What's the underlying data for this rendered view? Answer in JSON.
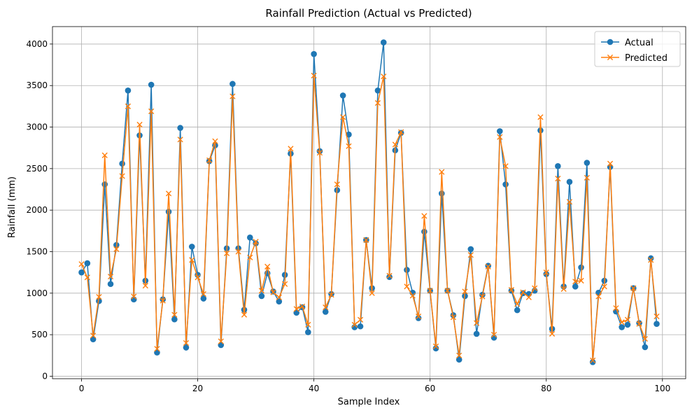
{
  "chart_data": {
    "type": "line",
    "title": "Rainfall Prediction (Actual vs Predicted)",
    "xlabel": "Sample Index",
    "ylabel": "Rainfall (mm)",
    "xlim": [
      -5,
      104
    ],
    "ylim": [
      -30,
      4210
    ],
    "xticks": [
      0,
      20,
      40,
      60,
      80,
      100
    ],
    "yticks": [
      0,
      500,
      1000,
      1500,
      2000,
      2500,
      3000,
      3500,
      4000
    ],
    "grid": true,
    "legend_position": "top-right",
    "x": [
      0,
      1,
      2,
      3,
      4,
      5,
      6,
      7,
      8,
      9,
      10,
      11,
      12,
      13,
      14,
      15,
      16,
      17,
      18,
      19,
      20,
      21,
      22,
      23,
      24,
      25,
      26,
      27,
      28,
      29,
      30,
      31,
      32,
      33,
      34,
      35,
      36,
      37,
      38,
      39,
      40,
      41,
      42,
      43,
      44,
      45,
      46,
      47,
      48,
      49,
      50,
      51,
      52,
      53,
      54,
      55,
      56,
      57,
      58,
      59,
      60,
      61,
      62,
      63,
      64,
      65,
      66,
      67,
      68,
      69,
      70,
      71,
      72,
      73,
      74,
      75,
      76,
      77,
      78,
      79,
      80,
      81,
      82,
      83,
      84,
      85,
      86,
      87,
      88,
      89,
      90,
      91,
      92,
      93,
      94,
      95,
      96,
      97,
      98,
      99
    ],
    "series": [
      {
        "name": "Actual",
        "color": "#1f77b4",
        "marker": "circle",
        "values": [
          1250,
          1360,
          445,
          905,
          2310,
          1110,
          1580,
          2560,
          3440,
          925,
          2900,
          1150,
          3510,
          285,
          925,
          1980,
          685,
          2990,
          345,
          1560,
          1220,
          935,
          2590,
          2780,
          375,
          1540,
          3520,
          1540,
          800,
          1670,
          1600,
          965,
          1240,
          1020,
          900,
          1220,
          2680,
          765,
          830,
          530,
          3880,
          2710,
          775,
          990,
          2240,
          3380,
          2910,
          590,
          600,
          1640,
          1060,
          3440,
          4020,
          1195,
          2720,
          2930,
          1280,
          1005,
          700,
          1740,
          1030,
          335,
          2200,
          1030,
          735,
          200,
          965,
          1530,
          510,
          980,
          1330,
          465,
          2950,
          2310,
          1030,
          795,
          1000,
          990,
          1030,
          2960,
          1230,
          570,
          2530,
          1080,
          2340,
          1080,
          1310,
          2570,
          170,
          1005,
          1150,
          2520,
          780,
          590,
          620,
          1060,
          640,
          350,
          1420,
          630
        ]
      },
      {
        "name": "Predicted",
        "color": "#ff7f0e",
        "marker": "x",
        "values": [
          1350,
          1190,
          490,
          955,
          2660,
          1200,
          1530,
          2410,
          3250,
          960,
          3030,
          1090,
          3190,
          330,
          910,
          2200,
          740,
          2850,
          400,
          1400,
          1190,
          990,
          2600,
          2830,
          420,
          1480,
          3370,
          1500,
          740,
          1430,
          1620,
          1030,
          1320,
          1010,
          950,
          1110,
          2740,
          810,
          840,
          620,
          3620,
          2690,
          830,
          980,
          2310,
          3120,
          2770,
          620,
          680,
          1640,
          1000,
          3290,
          3610,
          1210,
          2790,
          2940,
          1080,
          970,
          720,
          1930,
          1030,
          360,
          2460,
          1030,
          710,
          250,
          1020,
          1460,
          640,
          960,
          1320,
          500,
          2880,
          2530,
          1040,
          870,
          1010,
          950,
          1060,
          3120,
          1250,
          510,
          2380,
          1050,
          2100,
          1140,
          1150,
          2390,
          190,
          960,
          1080,
          2560,
          820,
          650,
          680,
          1060,
          630,
          450,
          1400,
          720
        ]
      }
    ]
  }
}
